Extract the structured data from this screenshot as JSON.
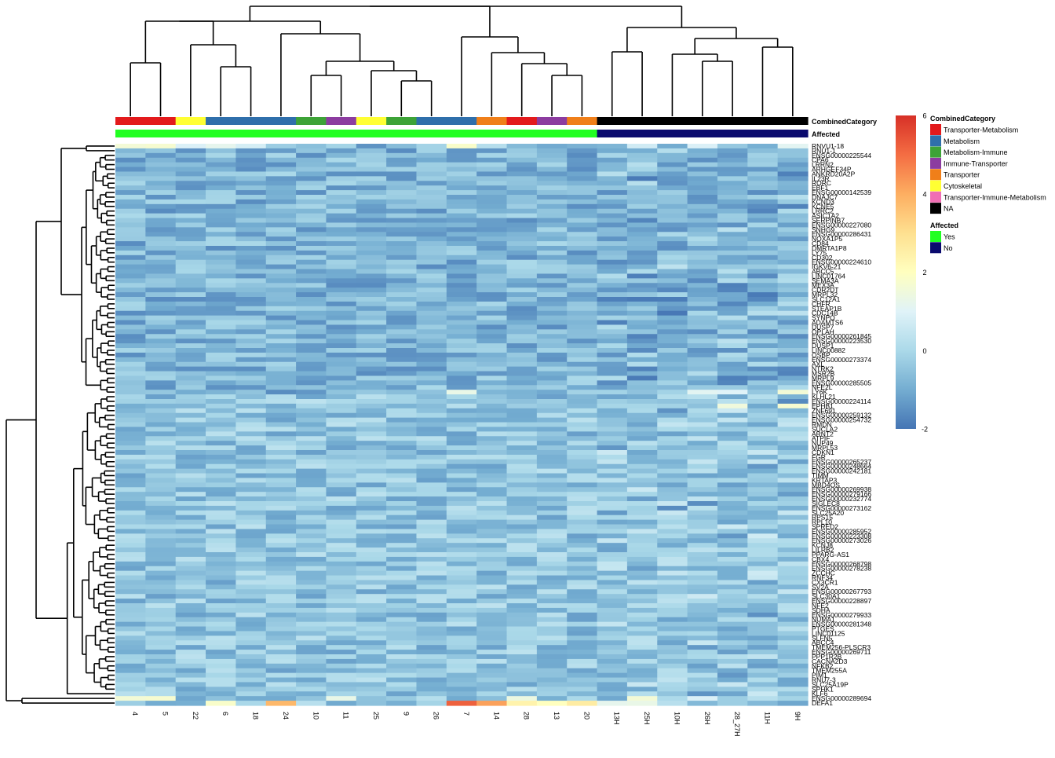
{
  "chart_data": {
    "type": "heatmap",
    "title": "",
    "columns": [
      "4",
      "5",
      "22",
      "6",
      "18",
      "24",
      "10",
      "11",
      "25",
      "9",
      "26",
      "7",
      "14",
      "28",
      "13",
      "20",
      "13H",
      "25H",
      "10H",
      "26H",
      "28_27H",
      "11H",
      "9H"
    ],
    "column_annotations": {
      "CombinedCategory": [
        "Transporter-Metabolism",
        "Transporter-Metabolism",
        "Cytoskeletal",
        "Metabolism",
        "Metabolism",
        "Metabolism",
        "Metabolism-Immune",
        "Immune-Transporter",
        "Cytoskeletal",
        "Metabolism-Immune",
        "Metabolism",
        "Metabolism",
        "Transporter",
        "Transporter-Metabolism",
        "Immune-Transporter",
        "Transporter",
        "NA",
        "NA",
        "NA",
        "NA",
        "NA",
        "NA",
        "NA"
      ],
      "Affected": [
        "Yes",
        "Yes",
        "Yes",
        "Yes",
        "Yes",
        "Yes",
        "Yes",
        "Yes",
        "Yes",
        "Yes",
        "Yes",
        "Yes",
        "Yes",
        "Yes",
        "Yes",
        "Yes",
        "No",
        "No",
        "No",
        "No",
        "No",
        "No",
        "No"
      ]
    },
    "annotation_titles": [
      "CombinedCategory",
      "Affected"
    ],
    "row_labels": [
      "RNVU1-18",
      "RNU1-1",
      "ENSG00000225544",
      "CPA6",
      "LRRN2",
      "ARHGEF34P",
      "ANKRD20A2P",
      "IL23R",
      "RORC",
      "EBF1",
      "ENSG00000142539",
      "DNAJC7",
      "KCND3",
      "KCNE5",
      "LRRC2",
      "ASIC1A2",
      "SERPINB7",
      "ENSG00000227080",
      "SNHG9",
      "ENSG00000286431",
      "NOXA1P5",
      "CD84",
      "DMRTA1P8",
      "LY75",
      "CD302",
      "ENSG00000224610",
      "IGKV6-21",
      "ABCC5",
      "LINC01764",
      "SEMA3A",
      "MEX3A",
      "CDR2DT",
      "MRPL32",
      "SLC12A1",
      "CHFR",
      "STEAP1B",
      "CDC14B",
      "SYNPO",
      "ADAMTS6",
      "DUSP7",
      "OPLAH",
      "ENSG00000261845",
      "ENSG00000223530",
      "DUSP1",
      "LINC00882",
      "OSBP",
      "ENSG00000273374",
      "AXL",
      "NTRK2",
      "MSR2B",
      "MRPL9",
      "ENSG00000285505",
      "NFE2L",
      "LY6K",
      "KLHL21",
      "ENSG00000224114",
      "EPHB1",
      "ZNF691",
      "ENSG00000259132",
      "ENSG00000254732",
      "RMDN",
      "SUCLA2",
      "ARNT2",
      "ATPIF",
      "NUP49",
      "MRPL53",
      "CDKN1",
      "FGR",
      "ENSG00000265237",
      "ENSG00000248664",
      "ENSG00000242181",
      "TIMM",
      "KRTAP3",
      "MBD4OS",
      "ENSG00000269938",
      "ENSG00000279166",
      "ENSG00000232774",
      "SIGLEC8",
      "ENSG00000273162",
      "SLC25A20",
      "RPS15",
      "RPL10",
      "SPRED2",
      "ENSG00000285952",
      "ENSG00000223308",
      "ENSG00000273026",
      "KCNJ8",
      "LILRB2",
      "PPARG-AS1",
      "CBX4",
      "ENSG00000268798",
      "ENSG00000278238",
      "ZCCHC",
      "RNF34",
      "CX3CR1",
      "SV2A",
      "ENSG00000267793",
      "SLC30A1",
      "ENSG00000228897",
      "NFE2",
      "SDHA",
      "ENSG00000279933",
      "NUMA1",
      "ENSG00000281348",
      "PTGES",
      "LINC01125",
      "SLFN5",
      "ABCC4",
      "TMEM256-PLSCR3",
      "ENSG00000269711",
      "PPP1R2B",
      "CACNA2D3",
      "NFKB2",
      "TMEM255A",
      "PIM1",
      "RNU7-3",
      "SLC25A19P",
      "SPHK1",
      "KLF6",
      "ENSG00000289694",
      "DEFA1"
    ],
    "color_scale": {
      "min": -2,
      "max": 6,
      "ticks": [
        "-2",
        "0",
        "2",
        "4",
        "6"
      ]
    },
    "colors": {
      "scale": [
        "#4575b4",
        "#74add1",
        "#abd9e9",
        "#e0f3f8",
        "#ffffbf",
        "#fee090",
        "#fdae61",
        "#f46d43",
        "#d73027"
      ],
      "CombinedCategory": {
        "Transporter-Metabolism": "#e31a1c",
        "Metabolism": "#2f6fab",
        "Metabolism-Immune": "#3da337",
        "Immune-Transporter": "#8c3ca0",
        "Transporter": "#f07f19",
        "Cytoskeletal": "#ffff33",
        "Transporter-Immune-Metabolism": "#f06eb4",
        "NA": "#000000"
      },
      "Affected": {
        "Yes": "#22ff22",
        "No": "#0a0a6e"
      }
    },
    "legend": {
      "colorbar_ticks": [
        "6",
        "4",
        "2",
        "0",
        "-2"
      ],
      "category_title": "CombinedCategory",
      "category_items": [
        "Transporter-Metabolism",
        "Metabolism",
        "Metabolism-Immune",
        "Immune-Transporter",
        "Transporter",
        "Cytoskeletal",
        "Transporter-Immune-Metabolism",
        "NA"
      ],
      "affected_title": "Affected",
      "affected_items": [
        "Yes",
        "No"
      ]
    }
  }
}
